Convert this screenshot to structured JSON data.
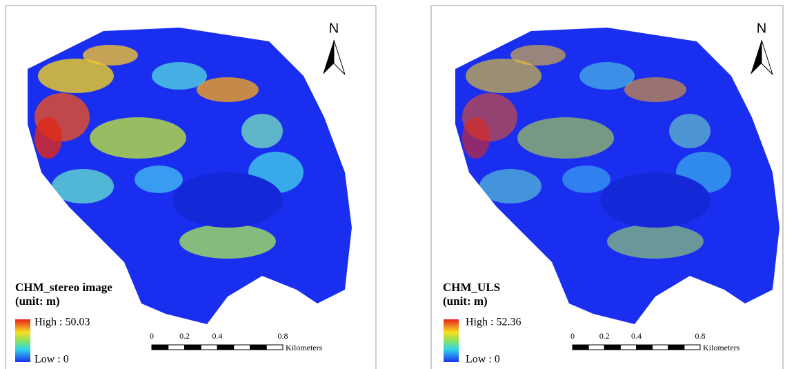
{
  "panels": [
    {
      "title": "CHM_stereo image",
      "unit": "(unit: m)",
      "legend": {
        "high": "High : 50.03",
        "low": "Low : 0"
      },
      "north": "N",
      "scale_bar": {
        "ticks": [
          0,
          0.2,
          0.4,
          0.8
        ],
        "unit": "Kilometers"
      }
    },
    {
      "title": "CHM_ULS",
      "unit": "(unit: m)",
      "legend": {
        "high": "High : 52.36",
        "low": "Low : 0"
      },
      "north": "N",
      "scale_bar": {
        "ticks": [
          0,
          0.2,
          0.4,
          0.8
        ],
        "unit": "Kilometers"
      }
    }
  ]
}
